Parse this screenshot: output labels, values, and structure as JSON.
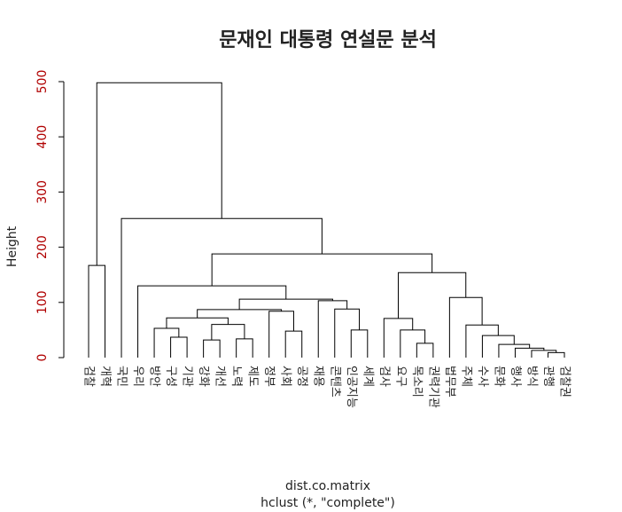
{
  "chart_data": {
    "type": "dendrogram",
    "title": "문재인 대통령 연설문 분석",
    "ylabel": "Height",
    "xlabel": "dist.co.matrix",
    "subtitle": "hclust (*, \"complete\")",
    "labels": [
      "검찰",
      "개혁",
      "국민",
      "우리",
      "방안",
      "구성",
      "기관",
      "강화",
      "개선",
      "노력",
      "제도",
      "정부",
      "사회",
      "공정",
      "재용",
      "콘텐츠",
      "인공지능",
      "세계",
      "검사",
      "요구",
      "목소리",
      "권력기관",
      "법무부",
      "주체",
      "수사",
      "문화",
      "행사",
      "방식",
      "관행",
      "검찰권"
    ],
    "merge": [
      [
        -29,
        -30
      ],
      [
        -28,
        1
      ],
      [
        -27,
        2
      ],
      [
        -26,
        3
      ],
      [
        -21,
        -22
      ],
      [
        -8,
        -9
      ],
      [
        -10,
        -11
      ],
      [
        -6,
        -7
      ],
      [
        -25,
        4
      ],
      [
        -13,
        -14
      ],
      [
        -17,
        -18
      ],
      [
        -20,
        5
      ],
      [
        -5,
        8
      ],
      [
        -24,
        9
      ],
      [
        6,
        7
      ],
      [
        -19,
        12
      ],
      [
        13,
        15
      ],
      [
        -12,
        10
      ],
      [
        17,
        18
      ],
      [
        -16,
        11
      ],
      [
        -15,
        20
      ],
      [
        19,
        21
      ],
      [
        -23,
        14
      ],
      [
        -4,
        22
      ],
      [
        16,
        23
      ],
      [
        -1,
        -2
      ],
      [
        24,
        25
      ],
      [
        -3,
        27
      ],
      [
        26,
        28
      ]
    ],
    "height": [
      9,
      13,
      17,
      24,
      26,
      32,
      34,
      37,
      40,
      48,
      50,
      50,
      53,
      59,
      60,
      71,
      72,
      84,
      87,
      88,
      103,
      106,
      109,
      130,
      154,
      167,
      188,
      252,
      498
    ],
    "ylim": [
      0,
      500
    ],
    "yticks": [
      0,
      100,
      200,
      300,
      400,
      500
    ],
    "tick_color": "#b00000"
  }
}
